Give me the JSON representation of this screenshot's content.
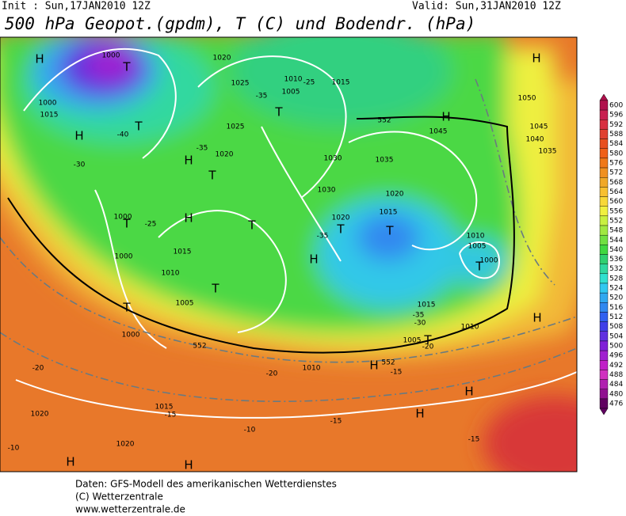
{
  "header": {
    "init": "Init : Sun,17JAN2010 12Z",
    "valid": "Valid: Sun,31JAN2010 12Z",
    "title": "500 hPa Geopot.(gpdm), T (C) und Bodendr. (hPa)"
  },
  "footer": {
    "lines": [
      "Daten: GFS-Modell des amerikanischen Wetterdienstes",
      "(C) Wetterzentrale",
      "www.wetterzentrale.de"
    ]
  },
  "colorbar": {
    "labels": [
      "600",
      "596",
      "592",
      "588",
      "584",
      "580",
      "576",
      "572",
      "568",
      "564",
      "560",
      "556",
      "552",
      "548",
      "544",
      "540",
      "536",
      "532",
      "528",
      "524",
      "520",
      "516",
      "512",
      "508",
      "504",
      "500",
      "496",
      "492",
      "488",
      "484",
      "480",
      "476"
    ],
    "colors": [
      "#b0104c",
      "#c82050",
      "#d83040",
      "#e04030",
      "#e85020",
      "#f06018",
      "#f07818",
      "#f09020",
      "#f0a828",
      "#f8c030",
      "#f8d838",
      "#f0f040",
      "#c8f040",
      "#a0e840",
      "#70e040",
      "#40d840",
      "#30d070",
      "#30d8a0",
      "#30e0d0",
      "#30c8f0",
      "#30a8f0",
      "#3088f0",
      "#3060f0",
      "#4040e8",
      "#6030e0",
      "#8020d8",
      "#a020d0",
      "#c020c8",
      "#d030c0",
      "#b020b0",
      "#901090",
      "#600060"
    ]
  },
  "map_labels": [
    "H",
    "T",
    "1000",
    "1000",
    "1015",
    "H",
    "T",
    "-40",
    "1025",
    "1020",
    "1010",
    "1005",
    "1015",
    "-30",
    "-25",
    "-35",
    "T",
    "H",
    "T",
    "1030",
    "1035",
    "1045",
    "H",
    "-35",
    "H",
    "1050",
    "1045",
    "1040",
    "1035",
    "1020",
    "1025",
    "1030",
    "1020",
    "1015",
    "-35",
    "T",
    "1020",
    "1005",
    "1000",
    "T",
    "T",
    "1000",
    "-25",
    "T",
    "1015",
    "1010",
    "1005",
    "1000",
    "T",
    "T",
    "H",
    "1005",
    "1010",
    "1010",
    "1015",
    "-35",
    "-30",
    "T",
    "1010",
    "-20",
    "-20",
    "-20",
    "H",
    "-15",
    "H",
    "H",
    "H",
    "-15",
    "1020",
    "-10",
    "1020",
    "H",
    "-10",
    "H",
    "-15",
    "-15",
    "1000",
    "1015",
    "T",
    "H",
    "552",
    "552",
    "552"
  ]
}
